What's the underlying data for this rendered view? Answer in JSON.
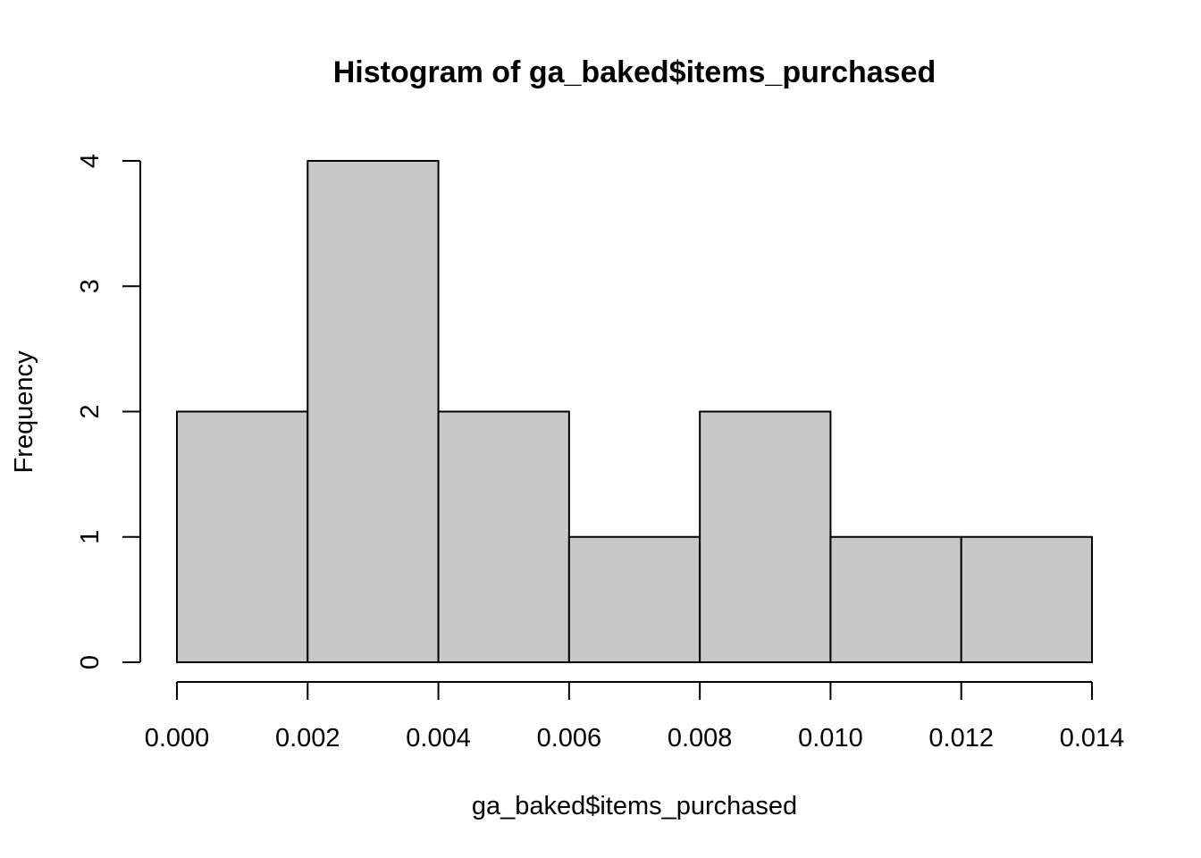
{
  "chart_data": {
    "type": "bar",
    "subtype": "histogram",
    "title": "Histogram of ga_baked$items_purchased",
    "xlabel": "ga_baked$items_purchased",
    "ylabel": "Frequency",
    "bins": [
      {
        "start": 0.0,
        "end": 0.002,
        "count": 2
      },
      {
        "start": 0.002,
        "end": 0.004,
        "count": 4
      },
      {
        "start": 0.004,
        "end": 0.006,
        "count": 2
      },
      {
        "start": 0.006,
        "end": 0.008,
        "count": 1
      },
      {
        "start": 0.008,
        "end": 0.01,
        "count": 2
      },
      {
        "start": 0.01,
        "end": 0.012,
        "count": 1
      },
      {
        "start": 0.012,
        "end": 0.014,
        "count": 1
      }
    ],
    "xlim": [
      0.0,
      0.014
    ],
    "ylim": [
      0,
      4
    ],
    "x_ticks": [
      0.0,
      0.002,
      0.004,
      0.006,
      0.008,
      0.01,
      0.012,
      0.014
    ],
    "x_tick_labels": [
      "0.000",
      "0.002",
      "0.004",
      "0.006",
      "0.008",
      "0.010",
      "0.012",
      "0.014"
    ],
    "y_ticks": [
      0,
      1,
      2,
      3,
      4
    ],
    "y_tick_labels": [
      "0",
      "1",
      "2",
      "3",
      "4"
    ],
    "grid": false,
    "legend": "none",
    "bar_color": "#c8c8c8",
    "edge_color": "#000000"
  }
}
